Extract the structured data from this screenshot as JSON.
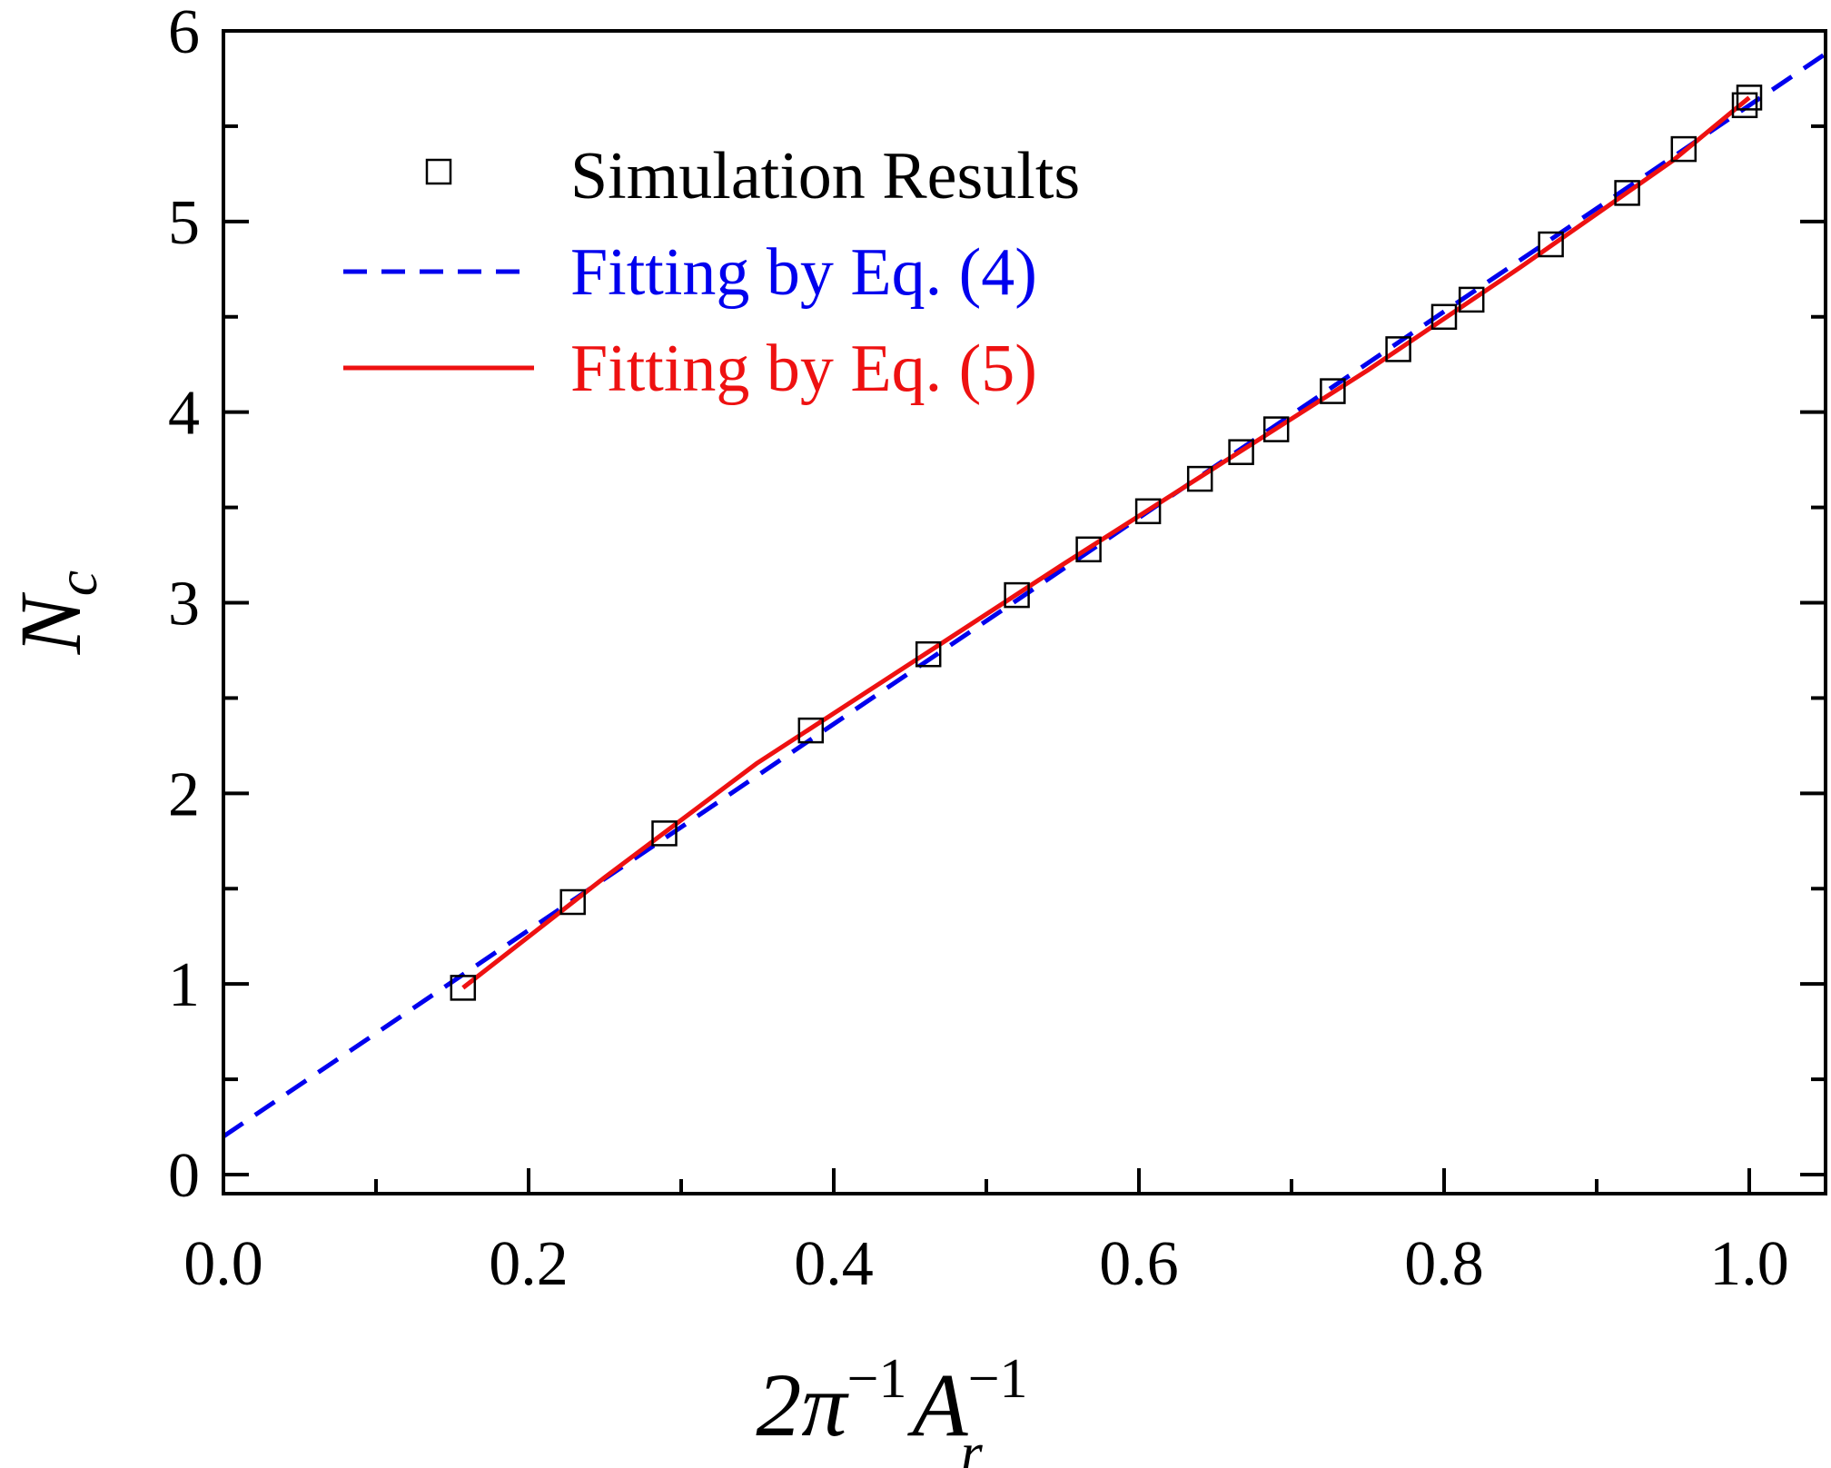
{
  "chart_data": {
    "type": "scatter",
    "xlim": [
      0.0,
      1.05
    ],
    "ylim": [
      -0.1,
      6.0
    ],
    "x_ticks": [
      "0.0",
      "0.2",
      "0.4",
      "0.6",
      "0.8",
      "1.0"
    ],
    "y_ticks": [
      "0",
      "1",
      "2",
      "3",
      "4",
      "5",
      "6"
    ],
    "xlabel": {
      "base": "2π",
      "sup1": "−1",
      "var": "A",
      "sup2": "−1",
      "sub": "r"
    },
    "ylabel": {
      "var": "N",
      "sub": "c"
    },
    "grid": false,
    "legend_position": "top-left",
    "series": [
      {
        "name": "Simulation Results",
        "kind": "markers",
        "marker": "open-square",
        "color": "#000000",
        "x": [
          0.157,
          0.229,
          0.289,
          0.385,
          0.462,
          0.52,
          0.567,
          0.606,
          0.64,
          0.667,
          0.69,
          0.727,
          0.77,
          0.8,
          0.818,
          0.87,
          0.92,
          0.957,
          0.997,
          1.0
        ],
        "y": [
          0.98,
          1.43,
          1.79,
          2.33,
          2.73,
          3.04,
          3.28,
          3.48,
          3.65,
          3.79,
          3.91,
          4.11,
          4.33,
          4.5,
          4.59,
          4.88,
          5.15,
          5.38,
          5.61,
          5.65
        ]
      },
      {
        "name": "Fitting by Eq. (4)",
        "kind": "line",
        "dash": "dashed",
        "color": "#0000ee",
        "x": [
          0.0,
          1.05
        ],
        "y": [
          0.2,
          5.88
        ]
      },
      {
        "name": "Fitting by Eq. (5)",
        "kind": "line",
        "dash": "solid",
        "color": "#ee1111",
        "x": [
          0.157,
          0.25,
          0.35,
          0.45,
          0.55,
          0.65,
          0.75,
          0.85,
          0.95,
          1.0
        ],
        "y": [
          0.98,
          1.56,
          2.16,
          2.68,
          3.2,
          3.71,
          4.22,
          4.76,
          5.32,
          5.65
        ]
      }
    ]
  }
}
